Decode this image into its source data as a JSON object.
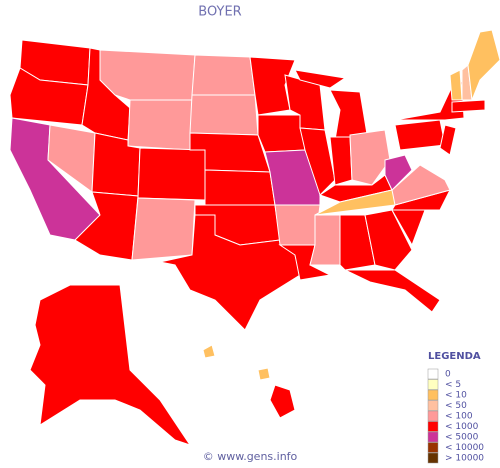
{
  "title": "BOYER",
  "legend": {
    "title": "LEGENDA",
    "items": [
      {
        "label": "0",
        "color": "#ffffff"
      },
      {
        "label": "< 5",
        "color": "#ffffc0"
      },
      {
        "label": "< 10",
        "color": "#ffc060"
      },
      {
        "label": "< 50",
        "color": "#ffc0a0"
      },
      {
        "label": "< 100",
        "color": "#ff9999"
      },
      {
        "label": "< 1000",
        "color": "#ff0000"
      },
      {
        "label": "< 5000",
        "color": "#cc3399"
      },
      {
        "label": "< 10000",
        "color": "#993300"
      },
      {
        "label": "> 10000",
        "color": "#663300"
      }
    ]
  },
  "regions": [
    5,
    5,
    6,
    4,
    5,
    4,
    4,
    5,
    5,
    5,
    4,
    4,
    4,
    5,
    5,
    5,
    5,
    5,
    5,
    6,
    4,
    5,
    5,
    5,
    5,
    5,
    4,
    5,
    2,
    4,
    5,
    5,
    5,
    5,
    5,
    4,
    6,
    5,
    5,
    2,
    3,
    2,
    5,
    5,
    5,
    5,
    2,
    2,
    5
  ],
  "footer": "© www.gens.info"
}
